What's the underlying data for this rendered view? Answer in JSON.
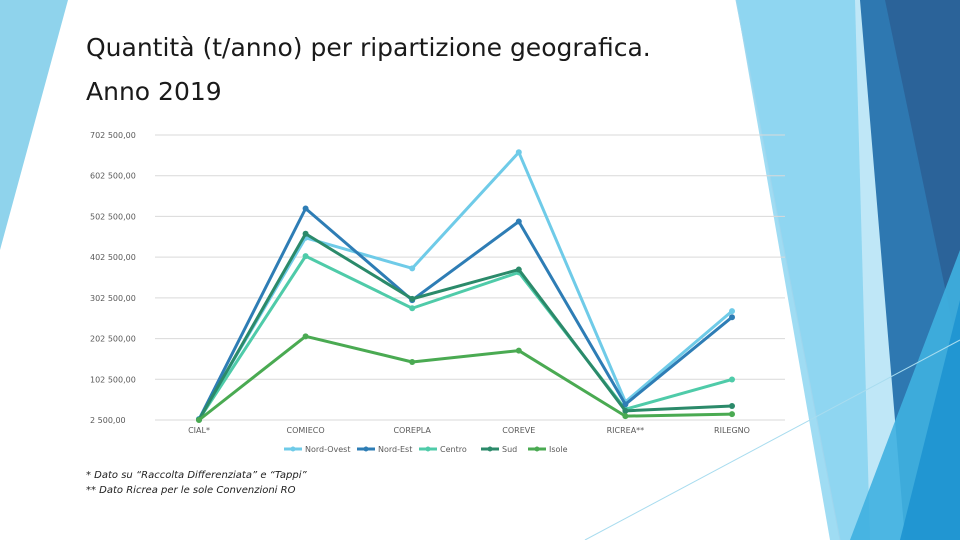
{
  "slide": {
    "title_line1": "Quantità (t/anno) per ripartizione geografica.",
    "title_line2": "Anno 2019",
    "footnote1": "* Dato su “Raccolta Differenziata” e “Tappi”",
    "footnote2": "** Dato Ricrea per le sole Convenzioni RO"
  },
  "colors": {
    "Nord-Ovest": "#6fcbe8",
    "Nord-Est": "#2e7db5",
    "Centro": "#4fcba9",
    "Sud": "#2b8a6a",
    "Isole": "#4aaa52",
    "grid": "#d9d9d9",
    "axis_text": "#595959"
  },
  "chart_data": {
    "type": "line",
    "categories": [
      "CIAL*",
      "COMIECO",
      "COREPLA",
      "COREVE",
      "RICREA**",
      "RILEGNO"
    ],
    "y_ticks": [
      "702 500,00",
      "602 500,00",
      "502 500,00",
      "402 500,00",
      "302 500,00",
      "202 500,00",
      "102 500,00",
      "2 500,00"
    ],
    "ylim": [
      2500,
      702500
    ],
    "grid": true,
    "legend_position": "bottom",
    "series": [
      {
        "name": "Nord-Ovest",
        "values": [
          5000,
          450000,
          375000,
          660000,
          47000,
          270000
        ]
      },
      {
        "name": "Nord-Est",
        "values": [
          4000,
          522000,
          297000,
          490000,
          41000,
          255000
        ]
      },
      {
        "name": "Centro",
        "values": [
          3500,
          405000,
          277000,
          365000,
          29000,
          102000
        ]
      },
      {
        "name": "Sud",
        "values": [
          3000,
          460000,
          300000,
          372000,
          25000,
          37000
        ]
      },
      {
        "name": "Isole",
        "values": [
          2500,
          208000,
          145000,
          173000,
          12000,
          17000
        ]
      }
    ]
  }
}
